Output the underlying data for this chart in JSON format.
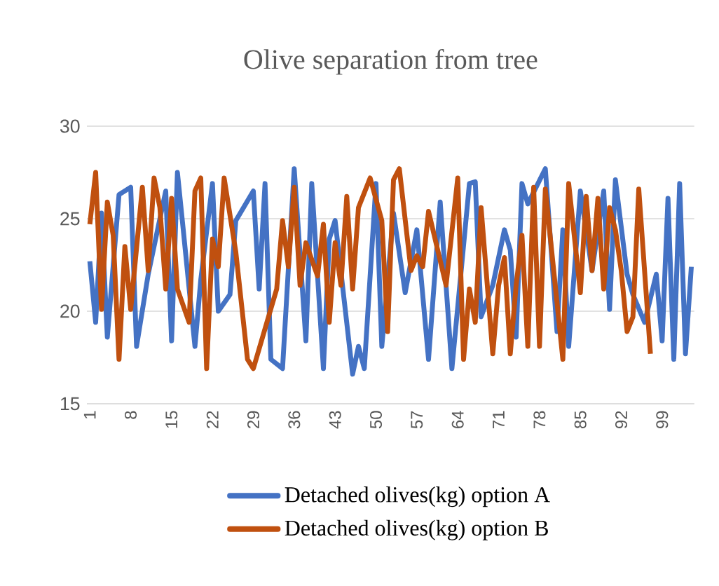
{
  "chart_data": {
    "type": "line",
    "title": "Olive separation from tree",
    "xlim": [
      0.5,
      104.5
    ],
    "xticks": [
      1,
      8,
      15,
      22,
      29,
      36,
      43,
      50,
      57,
      64,
      71,
      78,
      85,
      92,
      99
    ],
    "ylim": [
      15,
      30
    ],
    "yticks": [
      15,
      20,
      25,
      30
    ],
    "grid": "y",
    "legend": "bottom",
    "marker": "none",
    "line_style": "solid",
    "series": [
      {
        "name": "Detached olives(kg) option A",
        "color": "#4472c4",
        "x": [
          1,
          2,
          3,
          4,
          6,
          8,
          9,
          11,
          12,
          14,
          15,
          16,
          17,
          19,
          20,
          22,
          23,
          25,
          26,
          29,
          30,
          31,
          32,
          34,
          36,
          38,
          39,
          41,
          42,
          43,
          46,
          47,
          48,
          50,
          51,
          53,
          55,
          57,
          59,
          61,
          63,
          66,
          67,
          68,
          70,
          72,
          73,
          74,
          75,
          76,
          79,
          81,
          82,
          83,
          85,
          87,
          89,
          90,
          91,
          93,
          94,
          96,
          98,
          99,
          100,
          101,
          102,
          103,
          104
        ],
        "values": [
          22.7,
          19.4,
          25.3,
          18.6,
          26.3,
          26.7,
          18.1,
          22,
          23.5,
          26.5,
          18.4,
          27.5,
          24.4,
          18.1,
          21.7,
          26.9,
          20,
          20.9,
          24.9,
          26.5,
          21.2,
          26.9,
          17.4,
          16.9,
          27.7,
          18.4,
          26.9,
          16.9,
          23.9,
          24.9,
          16.6,
          18.1,
          16.9,
          26.9,
          18.1,
          25.3,
          21,
          24.4,
          17.4,
          25.9,
          16.9,
          26.9,
          27,
          19.7,
          21.4,
          24.4,
          23.3,
          18.6,
          26.9,
          25.8,
          27.7,
          18.9,
          24.4,
          18.1,
          26.5,
          22.2,
          26.5,
          20.1,
          27.1,
          22,
          20.9,
          19.4,
          22,
          18.4,
          26.1,
          17.4,
          26.9,
          17.7,
          22.4
        ]
      },
      {
        "name": "Detached olives(kg) option B",
        "color": "#c0500f",
        "x": [
          1,
          2,
          3,
          4,
          5,
          6,
          7,
          8,
          10,
          11,
          12,
          13,
          14,
          15,
          16,
          18,
          19,
          20,
          21,
          22,
          23,
          24,
          26,
          28,
          29,
          33,
          34,
          35,
          36,
          37,
          38,
          40,
          41,
          42,
          43,
          44,
          45,
          46,
          47,
          49,
          51,
          52,
          53,
          54,
          56,
          57,
          58,
          59,
          62,
          64,
          65,
          66,
          67,
          68,
          70,
          71,
          72,
          73,
          74,
          75,
          76,
          77,
          78,
          79,
          82,
          83,
          85,
          86,
          87,
          88,
          89,
          90,
          91,
          92,
          93,
          94,
          95,
          97
        ],
        "values": [
          24.7,
          27.5,
          20.1,
          25.9,
          24.1,
          17.4,
          23.5,
          20.1,
          26.7,
          22.2,
          27.2,
          25.6,
          21.2,
          26.1,
          21.2,
          19.4,
          26.5,
          27.2,
          16.9,
          23.9,
          22.4,
          27.2,
          23.2,
          17.4,
          16.9,
          21.2,
          24.9,
          22.4,
          26.7,
          21.4,
          23.7,
          21.9,
          24.7,
          19.4,
          23.7,
          21.4,
          26.2,
          21.2,
          25.6,
          27.2,
          24.9,
          18.9,
          27.1,
          27.7,
          22.2,
          23,
          22.4,
          25.4,
          21.4,
          27.2,
          17.4,
          21.2,
          19.4,
          25.6,
          17.7,
          21.4,
          22.9,
          17.7,
          21.4,
          24.1,
          18.1,
          26.7,
          18.1,
          26.6,
          17.4,
          26.9,
          21,
          26.2,
          22.2,
          26.1,
          21.2,
          25.6,
          24.4,
          22.2,
          18.9,
          19.7,
          26.6,
          17.7
        ]
      }
    ]
  }
}
